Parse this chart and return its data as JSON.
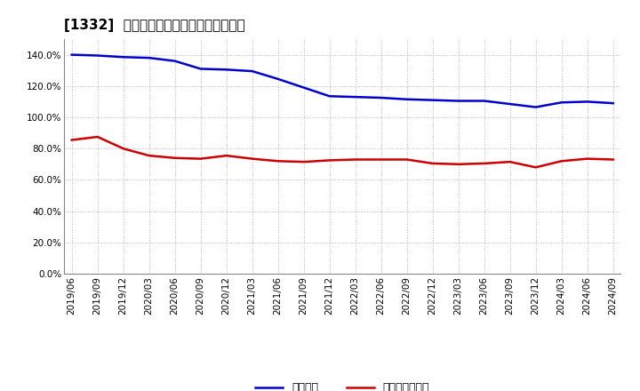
{
  "title": "[1332]  固定比率、固定長期適合率の推移",
  "x_labels": [
    "2019/06",
    "2019/09",
    "2019/12",
    "2020/03",
    "2020/06",
    "2020/09",
    "2020/12",
    "2021/03",
    "2021/06",
    "2021/09",
    "2021/12",
    "2022/03",
    "2022/06",
    "2022/09",
    "2022/12",
    "2023/03",
    "2023/06",
    "2023/09",
    "2023/12",
    "2024/03",
    "2024/06",
    "2024/09"
  ],
  "blue_values": [
    140.0,
    139.5,
    138.5,
    138.0,
    136.0,
    131.0,
    130.5,
    129.5,
    124.5,
    119.0,
    113.5,
    113.0,
    112.5,
    111.5,
    111.0,
    110.5,
    110.5,
    108.5,
    106.5,
    109.5,
    110.0,
    109.0
  ],
  "red_values": [
    85.5,
    87.5,
    80.0,
    75.5,
    74.0,
    73.5,
    75.5,
    73.5,
    72.0,
    71.5,
    72.5,
    73.0,
    73.0,
    73.0,
    70.5,
    70.0,
    70.5,
    71.5,
    68.0,
    72.0,
    73.5,
    73.0
  ],
  "blue_color": "#0000cc",
  "red_color": "#cc0000",
  "legend_blue": "固定比率",
  "legend_red": "固定長期適合率",
  "ylim": [
    0.0,
    150.0
  ],
  "yticks": [
    0.0,
    20.0,
    40.0,
    60.0,
    80.0,
    100.0,
    120.0,
    140.0
  ],
  "bg_color": "#ffffff",
  "plot_bg_color": "#ffffff",
  "grid_color": "#aaaaaa",
  "title_fontsize": 11,
  "axis_fontsize": 7.5,
  "legend_fontsize": 9
}
